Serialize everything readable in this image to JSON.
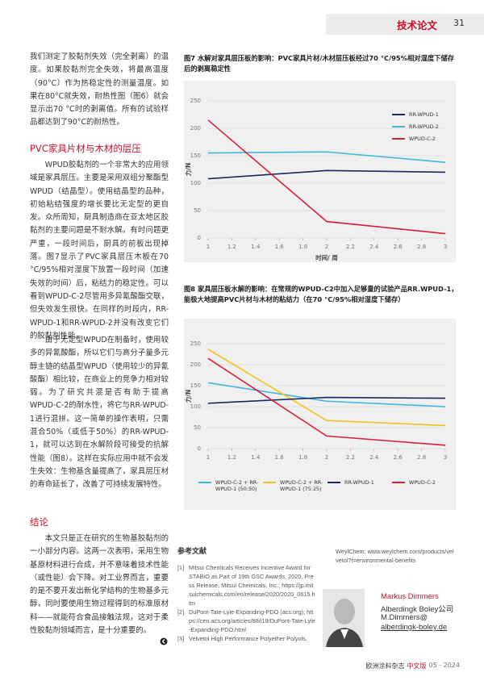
{
  "header": {
    "section": "技术论文",
    "page_number": "31"
  },
  "left_column": {
    "paragraphs": [
      "我们测定了胶黏剂失效（完全剥离）的温度。如果胶黏剂完全失效，将最高温度（90°C）作为热稳定性的测量温度。如果在80°C就失效，耐热性图（图6）就会显示出70 °C时的剥离值。所有的试验样品都达到了90°C的耐热性。",
      "WPUD胶黏剂的一个非常大的应用领域是家具层压。主要是采用双组分聚酯型WPUD（结晶型）。使用结晶型的品种，初始粘结强度的增长要比无定型的更自发。众所周知，厨具制造商在亚太地区胶黏剂的主要问题是不耐水解。有时问题更严重，一段时间后，厨具的前板出现掉落。图7显示了PVC家具层压木板在70 °C/95%相对湿度下放置一段时间（加速失效的时间）后，粘结力的稳定性。可以看到WPUD-C-2尽管用多异氰酸酯交联，但失效发生很快。在同样的时段内，RR-WPUD-1和RR-WPUD-2并没有改变它们的胶黏剂性能。",
      "由于无定型WPUD在制备时，使用较多的异氰酸酯，所以它们与高分子量多元醇主链的结晶型WPUD（使用较少的异氰酸酯）相比较，在商业上的竞争力相对较弱。为了研究共混是否有助于提高WPUD-C-2的耐水性，将它与RR-WPUD-1进行混拼。这一简单的操作表明，只需混合50%（或低于50%）的RR-WPUD-1，就可以达到在水解阶段可接受的抗解性能（图8）。这样在实际应用中就不会发生失效：生物基含量提高了，家具层压材的寿命延长了，改善了可持续发展特性。",
      "本文只是正在研究的生物基胶黏剂的一小部分内容。这两一次表明，采用生物基原材料进行合成，并不意味着技术性能（或性能）会下降。对工业界而言，重要的是不要开发出新化学结构的生物基多元醇，同时要使用生物过程得到的标准原材料——就能符合食品接触法规，这对于柔性胶黏剂领域而言，是十分重要的。"
    ],
    "headings": [
      "PVC家具片材与木材的层压",
      "结论"
    ]
  },
  "figures": {
    "captions": [
      "图7 水解对家具层压板的影响：PVC家具片材/木材层压板经过70 °C/95%相对湿度下储存后的剥离稳定性",
      "图8 家具层压板水解的影响：在常规的WPUD-C2中加入足够量的试验产品RR.WPUD-1，能极大地提高PVC片材与木材的粘结力（在70 °C/95%相对湿度下储存）"
    ]
  },
  "chart_data": [
    {
      "type": "line",
      "x": [
        1,
        2,
        3
      ],
      "xlim": [
        1,
        3
      ],
      "xticks": [
        1,
        1.2,
        1.4,
        1.6,
        1.8,
        2,
        2.2,
        2.4,
        2.6,
        2.8,
        3
      ],
      "ylim": [
        0,
        250
      ],
      "yticks": [
        0,
        50,
        100,
        150,
        200,
        250
      ],
      "xlabel": "时间/ 周",
      "ylabel": "力/N",
      "grid": true,
      "legend": "upper right",
      "series": [
        {
          "name": "RR-WPUD-1",
          "color": "#1c2b5e",
          "values": [
            108,
            123,
            120
          ]
        },
        {
          "name": "RR-WPUD-2",
          "color": "#3fb6dc",
          "values": [
            155,
            157,
            138
          ]
        },
        {
          "name": "WPUD-C-2",
          "color": "#d61f3a",
          "values": [
            215,
            30,
            8
          ]
        }
      ]
    },
    {
      "type": "line",
      "x": [
        1,
        2,
        3
      ],
      "xlim": [
        1,
        3
      ],
      "xticks": [
        1,
        1.2,
        1.4,
        1.6,
        1.8,
        2,
        2.2,
        2.4,
        2.6,
        2.8,
        3
      ],
      "ylim": [
        0,
        250
      ],
      "yticks": [
        0,
        50,
        100,
        150,
        200,
        250
      ],
      "ylabel": "力/N",
      "grid": true,
      "legend": "bottom",
      "series": [
        {
          "name": "WPUD-C-2 + RR-WPUD-1 (50:50)",
          "color": "#3fb6dc",
          "values": [
            157,
            113,
            100
          ]
        },
        {
          "name": "WPUD-C-2 + RR-WPUD-1 (75:25)",
          "color": "#f2c21b",
          "values": [
            237,
            67,
            55
          ]
        },
        {
          "name": "RR-WPUD-1",
          "color": "#1c2b5e",
          "values": [
            108,
            122,
            120
          ]
        },
        {
          "name": "WPUD-C-2",
          "color": "#d61f3a",
          "values": [
            215,
            30,
            8
          ]
        }
      ]
    }
  ],
  "references": {
    "title": "参考文献",
    "items": [
      {
        "number": "[1]",
        "text": "Mitsui Chemicals Receives Incentive Award for STABiO as Part of 19th GSC Awards, 2020, Press Release, Mitsui Chemicals, Inc.; https://jp.mitsuichemicals.com/en/release/2020/2020_0615.htm"
      },
      {
        "number": "[2]",
        "text": "DuPont-Tate-Lyle-Expanding-PDO (acs.org); https://cen.acs.org/articles/88/i19/DuPont-Tate-Lyle-Expanding-PDO.html"
      },
      {
        "number": "[3]",
        "text": "Velvetol High Performance Polyether Polyols,"
      }
    ],
    "continuation": "WeylChem; www.weylchem.com/products/velvetol?f=environmental-benefits"
  },
  "author": {
    "name": "Markus Dimmers",
    "company": "Alberdingk Boley公司",
    "email_line1": "M.Dimmers@",
    "email_line2": "alberdingk-boley.de"
  },
  "footer": {
    "journal": "欧洲涂料杂志",
    "edition": "中文版",
    "issue": "05 - 2024"
  }
}
